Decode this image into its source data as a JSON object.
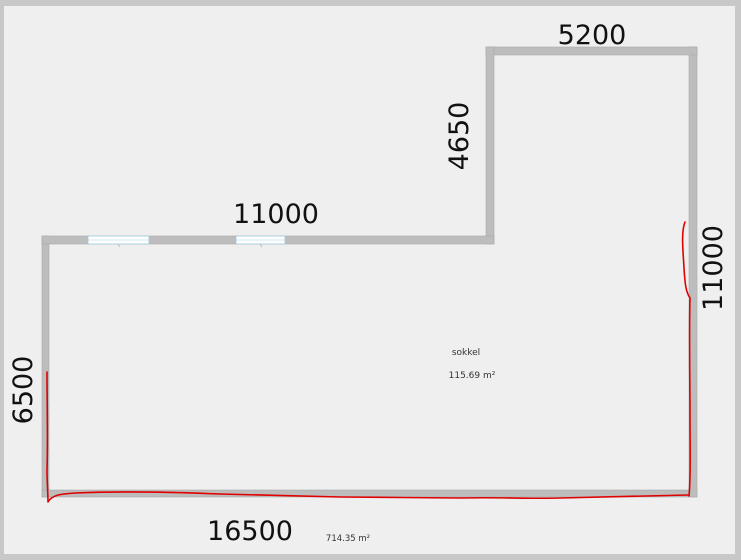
{
  "floorplan": {
    "dimensions": {
      "top_right_width": "5200",
      "right_upper_height": "4650",
      "top_left_width": "11000",
      "right_total_height": "11000",
      "left_height": "6500",
      "bottom_width": "16500"
    },
    "room": {
      "name": "sokkel",
      "area": "115.69 m²"
    },
    "total_area": "714.35 m²",
    "colors": {
      "wall": "#bdbdbd",
      "wall_edge": "#a8a8a8",
      "canvas": "#efefef",
      "frame": "#c8c8c8",
      "annotation": "#e00000",
      "window": "#ffffff",
      "window_accent": "#9ec9e0"
    }
  }
}
